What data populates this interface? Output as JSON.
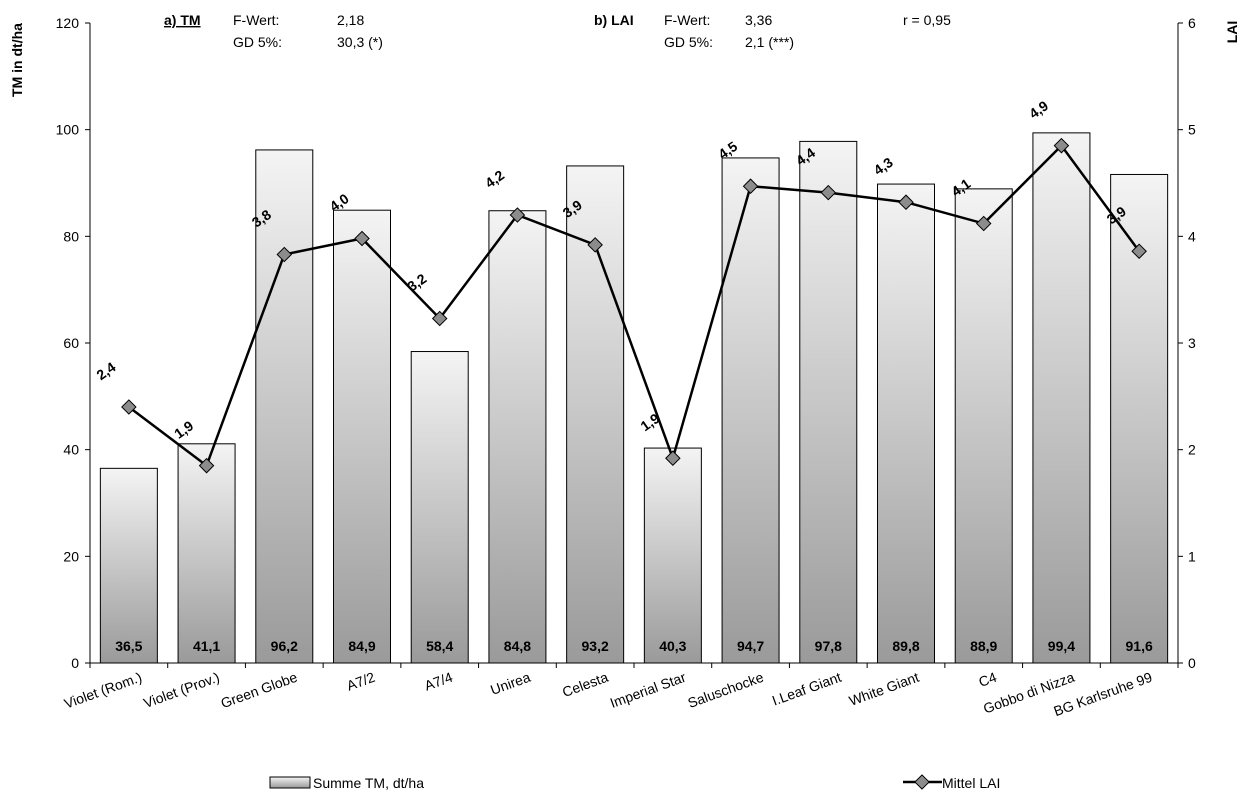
{
  "chart_data": {
    "type": "bar",
    "categories": [
      "Violet (Rom.)",
      "Violet (Prov.)",
      "Green Globe",
      "A7/2",
      "A7/4",
      "Unirea",
      "Celesta",
      "Imperial Star",
      "Saluschocke",
      "I.Leaf Giant",
      "White Giant",
      "C4",
      "Gobbo di Nizza",
      "BG Karlsruhe 99"
    ],
    "series": [
      {
        "name": "Summe TM, dt/ha",
        "axis": "left",
        "values": [
          36.5,
          41.1,
          96.2,
          84.9,
          58.4,
          84.8,
          93.2,
          40.3,
          94.7,
          97.8,
          89.8,
          88.9,
          99.4,
          91.6
        ],
        "labels": [
          "36,5",
          "41,1",
          "96,2",
          "84,9",
          "58,4",
          "84,8",
          "93,2",
          "40,3",
          "94,7",
          "97,8",
          "89,8",
          "88,9",
          "99,4",
          "91,6"
        ]
      },
      {
        "name": "Mittel LAI",
        "type": "line",
        "axis": "right",
        "values": [
          2.4,
          1.85,
          3.83,
          3.98,
          3.23,
          4.2,
          3.92,
          1.92,
          4.47,
          4.41,
          4.32,
          4.12,
          4.85,
          3.86
        ],
        "labels": [
          "2,4",
          "1,9",
          "3,8",
          "4,0",
          "3,2",
          "4,2",
          "3,9",
          "1,9",
          "4,5",
          "4,4",
          "4,3",
          "4,1",
          "4,9",
          "3,9"
        ]
      }
    ],
    "ylabel": "TM in dt/ha",
    "ylim": [
      0,
      120
    ],
    "yticks": [
      "0",
      "20",
      "40",
      "60",
      "80",
      "100",
      "120"
    ],
    "y2label": "LAI",
    "y2lim": [
      0,
      6
    ],
    "y2ticks": [
      "0",
      "1",
      "2",
      "3",
      "4",
      "5",
      "6"
    ],
    "legend_position": "bottom",
    "annotations": {
      "a_title": "a) TM",
      "a_fwert_label": "F-Wert:",
      "a_fwert_value": "2,18",
      "a_gd_label": "GD 5%:",
      "a_gd_value": "30,3 (*)",
      "b_title": "b) LAI",
      "b_fwert_label": "F-Wert:",
      "b_fwert_value": "3,36",
      "b_gd_label": "GD 5%:",
      "b_gd_value": "2,1 (***)",
      "r_value": "r = 0,95"
    },
    "colors": {
      "bar_top": "#f4f4f4",
      "bar_bottom": "#9a9a9a",
      "bar_stroke": "#000000",
      "line": "#000000",
      "marker": "#8c8c8c"
    }
  }
}
